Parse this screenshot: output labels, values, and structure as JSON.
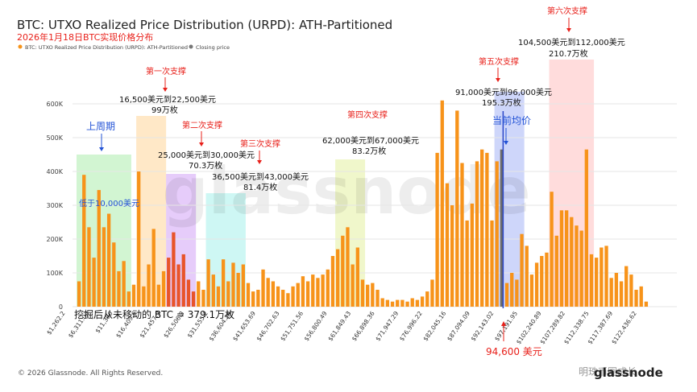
{
  "header": {
    "title": "BTC: UTXO Realized Price Distribution (URPD): ATH-Partitioned",
    "subtitle": "2026年1月18日BTC实现价格分布",
    "legend_series": "BTC: UTXO Realized Price Distribution (URPD): ATH-Partitioned",
    "legend_closing": "Closing price"
  },
  "footer": {
    "copyright": "© 2026 Glassnode. All Rights Reserved.",
    "brand": "glassnode",
    "mined_note": "挖掘后从未移动的 BTC = 379.1万枚",
    "closing_label": "94,600 美元",
    "weibo": "明珠币圈成长"
  },
  "colors": {
    "bar": "#f7931a",
    "closing_bar": "#6b6b6b",
    "closing_line": "#2a46c8",
    "red": "#e8201a",
    "blue": "#2353d6"
  },
  "chart_data": {
    "type": "bar",
    "title": "BTC: UTXO Realized Price Distribution (URPD): ATH-Partitioned",
    "ylim": [
      0,
      650000
    ],
    "y_ticks": [
      0,
      100000,
      200000,
      300000,
      400000,
      500000,
      600000
    ],
    "y_tick_labels": [
      "0",
      "100K",
      "200K",
      "300K",
      "400K",
      "500K",
      "600K"
    ],
    "x_tick_labels": [
      "$1,262.2",
      "$6,311.03",
      "$11,360",
      "$16,409.6",
      "$21,457.9",
      "$26,506.3",
      "$31,555.2",
      "$36,604.16",
      "$41,653.69",
      "$46,702.63",
      "$51,751.56",
      "$56,800.49",
      "$61,849.43",
      "$66,898.36",
      "$71,947.29",
      "$76,996.22",
      "$82,045.16",
      "$87,094.09",
      "$92,143.02",
      "$97,191.95",
      "$102,240.89",
      "$107,289.82",
      "$112,338.75",
      "$117,387.69",
      "$122,436.62"
    ],
    "values": [
      75000,
      390000,
      235000,
      145000,
      345000,
      235000,
      275000,
      190000,
      105000,
      135000,
      45000,
      65000,
      400000,
      60000,
      125000,
      230000,
      65000,
      105000,
      145000,
      220000,
      125000,
      155000,
      80000,
      45000,
      75000,
      50000,
      140000,
      95000,
      60000,
      140000,
      75000,
      130000,
      100000,
      125000,
      70000,
      45000,
      50000,
      110000,
      85000,
      75000,
      60000,
      50000,
      40000,
      60000,
      70000,
      90000,
      75000,
      95000,
      85000,
      95000,
      110000,
      150000,
      170000,
      210000,
      235000,
      125000,
      175000,
      80000,
      65000,
      70000,
      50000,
      25000,
      20000,
      15000,
      20000,
      20000,
      15000,
      25000,
      20000,
      30000,
      45000,
      80000,
      455000,
      610000,
      365000,
      300000,
      580000,
      425000,
      255000,
      305000,
      430000,
      465000,
      455000,
      255000,
      430000,
      465000,
      70000,
      100000,
      80000,
      215000,
      180000,
      95000,
      130000,
      150000,
      160000,
      340000,
      210000,
      285000,
      285000,
      265000,
      240000,
      225000,
      465000,
      155000,
      145000,
      175000,
      180000,
      85000,
      100000,
      75000,
      120000,
      95000,
      50000,
      60000,
      15000
    ],
    "closing_price_index": 85,
    "closing_price": 94600,
    "support_zones": [
      {
        "label": "上周期",
        "desc": "低于10,000美元"
      },
      {
        "label": "第一次支撑",
        "range": "16,500美元到22,500美元",
        "amount": "99万枚"
      },
      {
        "label": "第二次支撑",
        "range": "25,000美元到30,000美元",
        "amount": "70.3万枚"
      },
      {
        "label": "第三次支撑",
        "range": "36,500美元到43,000美元",
        "amount": "81.4万枚"
      },
      {
        "label": "第四次支撑",
        "range": "62,000美元到67,000美元",
        "amount": "83.2万枚"
      },
      {
        "label": "第五次支撑",
        "range": "91,000美元到96,000美元",
        "amount": "195.3万枚"
      },
      {
        "label": "当前均价"
      },
      {
        "label": "第六次支撑",
        "range": "104,500美元到112,000美元",
        "amount": "210.7万枚"
      }
    ]
  }
}
